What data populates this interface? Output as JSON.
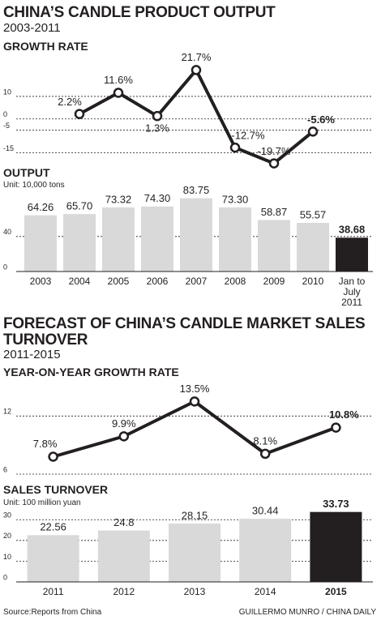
{
  "header": {
    "title": "CHINA’S CANDLE PRODUCT OUTPUT",
    "subtitle": "2003-2011"
  },
  "header2": {
    "title": "FORECAST OF CHINA’S CANDLE MARKET SALES TURNOVER",
    "subtitle": "2011-2015"
  },
  "footer": {
    "source": "Source:Reports from China",
    "credit": "GUILLERMO MUNRO / CHINA DAILY"
  },
  "chart_data": [
    {
      "type": "line",
      "title": "GROWTH RATE",
      "color": "#231f20",
      "values": [
        2.2,
        11.6,
        1.3,
        21.7,
        -12.7,
        -19.7,
        -5.6
      ],
      "value_labels": [
        "2.2%",
        "11.6%",
        "1.3%",
        "21.7%",
        "-12.7%",
        "-19.7%",
        "-5.6%"
      ],
      "ylim": [
        -22,
        24
      ],
      "yticks": [
        10,
        0,
        -5,
        -15
      ],
      "grid": true
    },
    {
      "type": "bar",
      "title": "OUTPUT",
      "subtitle": "Unit: 10,000 tons",
      "categories": [
        "2003",
        "2004",
        "2005",
        "2006",
        "2007",
        "2008",
        "2009",
        "2010",
        "Jan to July 2011"
      ],
      "values": [
        64.26,
        65.7,
        73.32,
        74.3,
        83.75,
        73.3,
        58.87,
        55.57,
        38.68
      ],
      "value_labels": [
        "64.26",
        "65.70",
        "73.32",
        "74.30",
        "83.75",
        "73.30",
        "58.87",
        "55.57",
        "38.68"
      ],
      "colors": [
        "#d9d9d9",
        "#d9d9d9",
        "#d9d9d9",
        "#d9d9d9",
        "#d9d9d9",
        "#d9d9d9",
        "#d9d9d9",
        "#d9d9d9",
        "#231f20"
      ],
      "ylim": [
        0,
        88
      ],
      "yticks": [
        0,
        40
      ],
      "grid": true
    },
    {
      "type": "line",
      "title": "YEAR-ON-YEAR GROWTH RATE",
      "color": "#231f20",
      "values": [
        7.8,
        9.9,
        13.5,
        8.1,
        10.8
      ],
      "value_labels": [
        "7.8%",
        "9.9%",
        "13.5%",
        "8.1%",
        "10.8%"
      ],
      "ylim": [
        6,
        14.2
      ],
      "yticks": [
        12,
        6
      ],
      "grid": true
    },
    {
      "type": "bar",
      "title": "SALES TURNOVER",
      "subtitle": "Unit: 100 million yuan",
      "categories": [
        "2011",
        "2012",
        "2013",
        "2014",
        "2015"
      ],
      "values": [
        22.56,
        24.8,
        28.15,
        30.44,
        33.73
      ],
      "value_labels": [
        "22.56",
        "24.8",
        "28.15",
        "30.44",
        "33.73"
      ],
      "colors": [
        "#d9d9d9",
        "#d9d9d9",
        "#d9d9d9",
        "#d9d9d9",
        "#231f20"
      ],
      "ylim": [
        0,
        34
      ],
      "yticks": [
        0,
        10,
        20,
        30
      ],
      "grid": true
    }
  ]
}
